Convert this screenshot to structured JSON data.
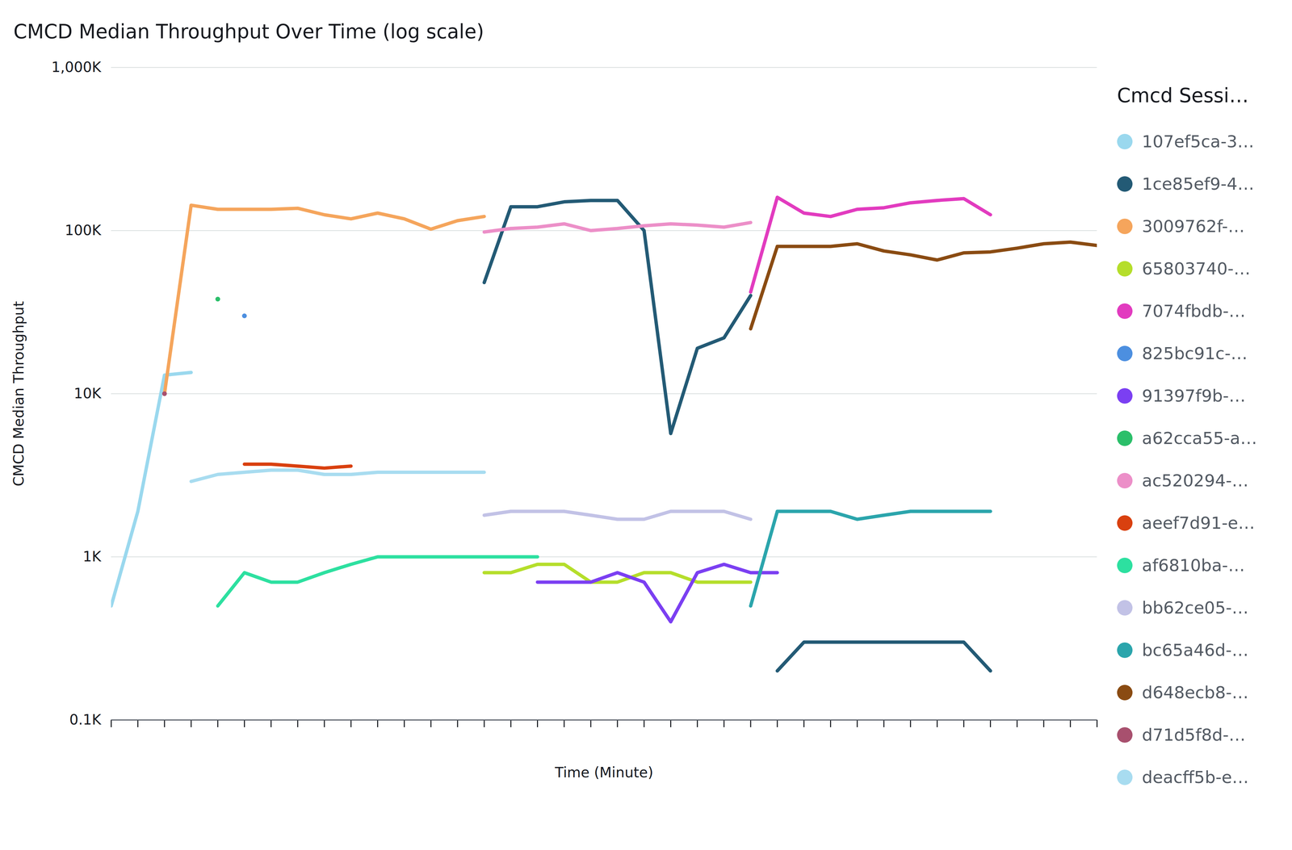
{
  "chart_data": {
    "type": "line",
    "title": "CMCD Median Throughput Over Time (log scale)",
    "x_label": "Time (Minute)",
    "y_label": "CMCD Median Throughput",
    "legend_title": "Cmcd Sessi…",
    "log": "y",
    "grid": true,
    "legend": "right",
    "tick_labels": "y",
    "x": [
      0,
      1,
      2,
      3,
      4,
      5,
      6,
      7,
      8,
      9,
      10,
      11,
      12,
      13,
      14,
      15,
      16,
      17,
      18,
      19,
      20,
      21,
      22,
      23,
      24,
      25,
      26,
      27,
      28,
      29,
      30,
      31,
      32,
      33,
      34,
      35,
      36,
      37
    ],
    "xlim": [
      0,
      37
    ],
    "xticks": [
      0,
      1,
      2,
      3,
      4,
      5,
      6,
      7,
      8,
      9,
      10,
      11,
      12,
      13,
      14,
      15,
      16,
      17,
      18,
      19,
      20,
      21,
      22,
      23,
      24,
      25,
      26,
      27,
      28,
      29,
      30,
      31,
      32,
      33,
      34,
      35,
      36,
      37
    ],
    "ylim": [
      100,
      1000000
    ],
    "yticks": [
      {
        "value": 100,
        "label": "0.1K"
      },
      {
        "value": 1000,
        "label": "1K"
      },
      {
        "value": 10000,
        "label": "10K"
      },
      {
        "value": 100000,
        "label": "100K"
      },
      {
        "value": 1000000,
        "label": "1,000K"
      }
    ],
    "series": [
      {
        "name": "107ef5ca-3…",
        "color": "#9ad8ee",
        "values": [
          500,
          1900,
          13000,
          13500,
          null,
          null,
          null,
          null,
          null,
          null,
          null,
          null,
          null,
          null,
          null,
          null,
          null,
          null,
          null,
          null,
          null,
          null,
          null,
          null,
          null,
          null,
          null,
          null,
          null,
          null,
          null,
          null,
          null,
          null,
          null,
          null,
          null,
          null
        ]
      },
      {
        "name": "1ce85ef9-4…",
        "color": "#235a75",
        "values": [
          null,
          null,
          null,
          null,
          null,
          null,
          null,
          null,
          null,
          null,
          null,
          null,
          null,
          null,
          48000,
          140000,
          140000,
          150000,
          153000,
          153000,
          100000,
          5700,
          19000,
          22000,
          40000,
          null,
          null,
          null,
          null,
          null,
          null,
          null,
          null,
          null,
          null,
          null,
          null,
          null
        ]
      },
      {
        "name": "1ce85ef9-4…",
        "color": "#235a75",
        "values": [
          null,
          null,
          null,
          null,
          null,
          null,
          null,
          null,
          null,
          null,
          null,
          null,
          null,
          null,
          null,
          null,
          null,
          null,
          null,
          null,
          null,
          null,
          null,
          null,
          null,
          200,
          300,
          300,
          300,
          300,
          300,
          300,
          300,
          200,
          null,
          null,
          null,
          null
        ]
      },
      {
        "name": "3009762f-…",
        "color": "#f5a55c",
        "values": [
          null,
          null,
          10000,
          143000,
          135000,
          135000,
          135000,
          137000,
          125000,
          118000,
          128000,
          118000,
          102000,
          115000,
          122000,
          null,
          null,
          null,
          null,
          null,
          null,
          null,
          null,
          null,
          null,
          null,
          null,
          null,
          null,
          null,
          null,
          null,
          null,
          null,
          null,
          null,
          null,
          null
        ]
      },
      {
        "name": "65803740-…",
        "color": "#b5de2b",
        "values": [
          null,
          null,
          null,
          null,
          null,
          null,
          null,
          null,
          null,
          null,
          null,
          null,
          null,
          null,
          800,
          800,
          900,
          900,
          700,
          700,
          800,
          800,
          700,
          700,
          700,
          null,
          null,
          null,
          null,
          null,
          null,
          null,
          null,
          null,
          null,
          null,
          null,
          null
        ]
      },
      {
        "name": "7074fbdb-…",
        "color": "#e23bbf",
        "values": [
          null,
          null,
          null,
          null,
          null,
          null,
          null,
          null,
          null,
          null,
          null,
          null,
          null,
          null,
          null,
          null,
          null,
          null,
          null,
          null,
          null,
          null,
          null,
          null,
          42000,
          160000,
          128000,
          122000,
          135000,
          138000,
          148000,
          153000,
          157000,
          125000,
          null,
          null,
          null,
          null
        ]
      },
      {
        "name": "825bc91c-…",
        "color": "#4c8fe0",
        "values": [
          null,
          null,
          null,
          null,
          null,
          30000,
          null,
          null,
          null,
          null,
          null,
          null,
          null,
          null,
          null,
          null,
          null,
          null,
          null,
          null,
          null,
          null,
          null,
          null,
          null,
          null,
          null,
          null,
          null,
          null,
          null,
          null,
          null,
          null,
          null,
          null,
          null,
          null
        ]
      },
      {
        "name": "91397f9b-…",
        "color": "#7b3ff2",
        "values": [
          null,
          null,
          null,
          null,
          null,
          null,
          null,
          null,
          null,
          null,
          null,
          null,
          null,
          null,
          null,
          null,
          700,
          700,
          700,
          800,
          700,
          400,
          800,
          900,
          800,
          800,
          null,
          null,
          null,
          null,
          null,
          null,
          null,
          null,
          null,
          null,
          null,
          null
        ]
      },
      {
        "name": "a62cca55-a…",
        "color": "#2bbf6a",
        "values": [
          null,
          null,
          null,
          null,
          38000,
          null,
          null,
          null,
          null,
          null,
          null,
          null,
          null,
          null,
          null,
          null,
          null,
          null,
          null,
          null,
          null,
          null,
          null,
          null,
          null,
          null,
          null,
          null,
          null,
          null,
          null,
          null,
          null,
          null,
          null,
          null,
          null,
          null
        ]
      },
      {
        "name": "ac520294-…",
        "color": "#ec8fc8",
        "values": [
          null,
          null,
          null,
          null,
          null,
          null,
          null,
          null,
          null,
          null,
          null,
          null,
          null,
          null,
          98000,
          103000,
          105000,
          110000,
          100000,
          103000,
          107000,
          110000,
          108000,
          105000,
          112000,
          null,
          null,
          null,
          null,
          null,
          null,
          null,
          null,
          null,
          null,
          null,
          null,
          null
        ]
      },
      {
        "name": "aeef7d91-e…",
        "color": "#d9400f",
        "values": [
          null,
          null,
          null,
          null,
          null,
          3700,
          3700,
          3600,
          3500,
          3600,
          null,
          null,
          null,
          null,
          null,
          null,
          null,
          null,
          null,
          null,
          null,
          null,
          null,
          null,
          null,
          null,
          null,
          null,
          null,
          null,
          null,
          null,
          null,
          null,
          null,
          null,
          null,
          null
        ]
      },
      {
        "name": "af6810ba-…",
        "color": "#2de0a0",
        "values": [
          null,
          null,
          null,
          null,
          500,
          800,
          700,
          700,
          800,
          900,
          1000,
          1000,
          1000,
          1000,
          1000,
          1000,
          1000,
          null,
          null,
          null,
          null,
          null,
          null,
          null,
          null,
          null,
          null,
          null,
          null,
          null,
          null,
          null,
          null,
          null,
          null,
          null,
          null,
          null
        ]
      },
      {
        "name": "bb62ce05-…",
        "color": "#c2c2e6",
        "values": [
          null,
          null,
          null,
          null,
          null,
          null,
          null,
          null,
          null,
          null,
          null,
          null,
          null,
          null,
          1800,
          1900,
          1900,
          1900,
          1800,
          1700,
          1700,
          1900,
          1900,
          1900,
          1700,
          null,
          null,
          null,
          null,
          null,
          null,
          null,
          null,
          null,
          null,
          null,
          null,
          null
        ]
      },
      {
        "name": "bc65a46d-…",
        "color": "#2ba5ac",
        "values": [
          null,
          null,
          null,
          null,
          null,
          null,
          null,
          null,
          null,
          null,
          null,
          null,
          null,
          null,
          null,
          null,
          null,
          null,
          null,
          null,
          null,
          null,
          null,
          null,
          500,
          1900,
          1900,
          1900,
          1700,
          1800,
          1900,
          1900,
          1900,
          1900,
          null,
          null,
          null,
          null
        ]
      },
      {
        "name": "d648ecb8-…",
        "color": "#8a4b12",
        "values": [
          null,
          null,
          null,
          null,
          null,
          null,
          null,
          null,
          null,
          null,
          null,
          null,
          null,
          null,
          null,
          null,
          null,
          null,
          null,
          null,
          null,
          null,
          null,
          null,
          25000,
          80000,
          80000,
          80000,
          83000,
          75000,
          71000,
          66000,
          73000,
          74000,
          78000,
          83000,
          85000,
          81000
        ]
      },
      {
        "name": "d71d5f8d-…",
        "color": "#a8506e",
        "values": [
          null,
          null,
          10000,
          null,
          null,
          null,
          null,
          null,
          null,
          null,
          null,
          null,
          null,
          null,
          null,
          null,
          null,
          null,
          null,
          null,
          null,
          null,
          null,
          null,
          null,
          null,
          null,
          null,
          null,
          null,
          null,
          null,
          null,
          null,
          null,
          null,
          null,
          null
        ]
      },
      {
        "name": "deacff5b-e…",
        "color": "#a8dcf0",
        "values": [
          null,
          null,
          null,
          2900,
          3200,
          3300,
          3400,
          3400,
          3200,
          3200,
          3300,
          3300,
          3300,
          3300,
          3300,
          null,
          null,
          null,
          null,
          null,
          null,
          null,
          null,
          null,
          null,
          null,
          null,
          null,
          null,
          null,
          null,
          null,
          null,
          null,
          null,
          null,
          null,
          null
        ]
      }
    ]
  }
}
